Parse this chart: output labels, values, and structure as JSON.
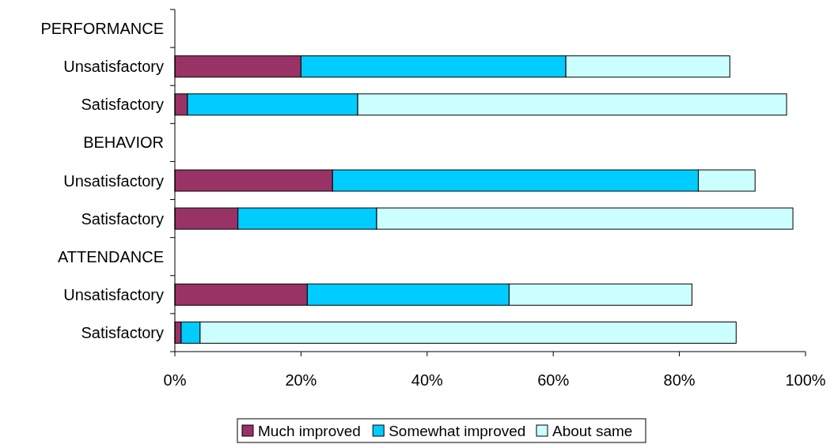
{
  "chart_data": {
    "type": "bar",
    "orientation": "horizontal",
    "stacked": true,
    "categories": [
      "PERFORMANCE",
      "Unsatisfactory",
      "Satisfactory",
      "BEHAVIOR",
      "Unsatisfactory",
      "Satisfactory",
      "ATTENDANCE",
      "Unsatisfactory",
      "Satisfactory"
    ],
    "series": [
      {
        "name": "Much improved",
        "color": "#993366",
        "values": [
          null,
          20,
          2,
          null,
          25,
          10,
          null,
          21,
          1
        ]
      },
      {
        "name": "Somewhat improved",
        "color": "#00ccff",
        "values": [
          null,
          42,
          27,
          null,
          58,
          22,
          null,
          32,
          3
        ]
      },
      {
        "name": "About same",
        "color": "#ccffff",
        "values": [
          null,
          26,
          68,
          null,
          9,
          66,
          null,
          29,
          85
        ]
      }
    ],
    "xlim": [
      0,
      100
    ],
    "xticks": [
      {
        "value": 0,
        "label": "0%"
      },
      {
        "value": 20,
        "label": "20%"
      },
      {
        "value": 40,
        "label": "40%"
      },
      {
        "value": 60,
        "label": "60%"
      },
      {
        "value": 80,
        "label": "80%"
      },
      {
        "value": 100,
        "label": "100%"
      }
    ],
    "grid": false,
    "legend": "bottom"
  }
}
